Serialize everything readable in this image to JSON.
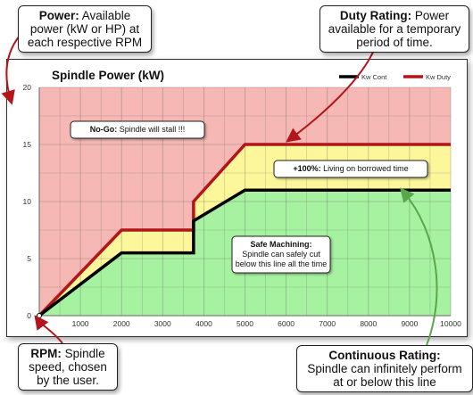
{
  "callouts": {
    "power": {
      "title": "Power:",
      "text": "Available power (kW or HP) at each respective RPM"
    },
    "duty": {
      "title": "Duty Rating:",
      "text": "Power available for a temporary period of time."
    },
    "rpm": {
      "title": "RPM:",
      "text": "Spindle speed, chosen by the user."
    },
    "continuous": {
      "title": "Continuous Rating:",
      "text": "Spindle can infinitely perform at or below this line"
    }
  },
  "chart_data": {
    "type": "line",
    "title": "Spindle Power (kW)",
    "xlim": [
      0,
      10000
    ],
    "ylim": [
      0,
      20
    ],
    "xticks": [
      0,
      1000,
      2000,
      3000,
      4000,
      5000,
      6000,
      7000,
      8000,
      9000,
      10000
    ],
    "yticks": [
      0,
      5,
      10,
      15,
      20
    ],
    "grid": true,
    "legend": "top-right",
    "series": [
      {
        "name": "Kw Cont",
        "color": "#000000",
        "x": [
          0,
          2000,
          3750,
          3750,
          5000,
          10000
        ],
        "y": [
          0,
          5.5,
          5.5,
          8.3,
          11,
          11
        ]
      },
      {
        "name": "Kw Duty",
        "color": "#b3151a",
        "x": [
          0,
          2000,
          3750,
          3750,
          5000,
          10000
        ],
        "y": [
          0,
          7.5,
          7.5,
          10,
          15,
          15
        ]
      }
    ],
    "zones": [
      {
        "label": "No-Go:",
        "text": "Spindle will stall !!!",
        "color": "#f5b8b4"
      },
      {
        "label": "+100%:",
        "text": "Living on borrowed time",
        "color": "#fbf79a"
      },
      {
        "label": "Safe Machining:",
        "text": "Spindle can safely cut below this line all the time",
        "color": "#a6f2a0"
      }
    ]
  }
}
